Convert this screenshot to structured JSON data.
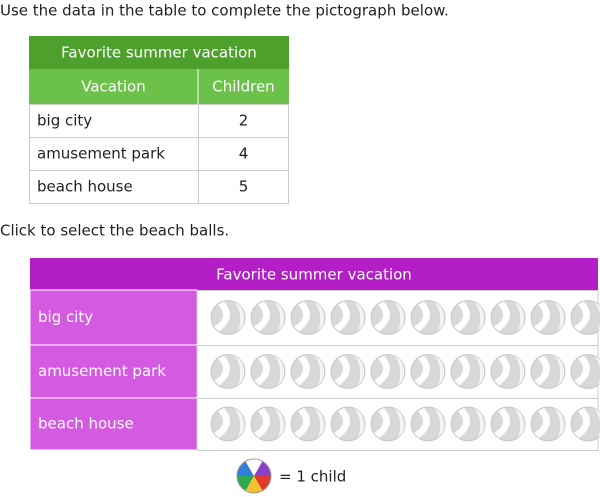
{
  "instruction": "Use the data in the table to complete the pictograph below.",
  "table": {
    "title": "Favorite summer vacation",
    "header": [
      "Vacation",
      "Children"
    ],
    "rows": [
      [
        "big city",
        2
      ],
      [
        "amusement park",
        4
      ],
      [
        "beach house",
        5
      ]
    ]
  },
  "prompt": "Click to select the beach balls.",
  "pictograph": {
    "title": "Favorite summer vacation",
    "rows": [
      {
        "label": "big city",
        "selected": [
          false,
          false,
          false,
          false,
          false,
          false,
          false,
          false,
          false,
          false
        ]
      },
      {
        "label": "amusement park",
        "selected": [
          false,
          false,
          false,
          false,
          false,
          false,
          false,
          false,
          false,
          false
        ]
      },
      {
        "label": "beach house",
        "selected": [
          false,
          false,
          false,
          false,
          false,
          false,
          false,
          false,
          false,
          false
        ]
      }
    ]
  },
  "key": "= 1 child"
}
